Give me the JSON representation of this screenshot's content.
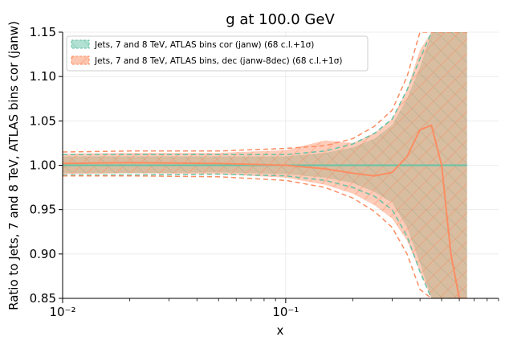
{
  "chart_data": {
    "type": "line",
    "title": "g at 100.0 GeV",
    "xlabel": "x",
    "ylabel": "Ratio to Jets, 7 and 8 TeV, ATLAS bins cor (janw)",
    "xscale": "log",
    "xlim": [
      0.01,
      0.9
    ],
    "ylim": [
      0.85,
      1.15
    ],
    "x_ticks": [
      {
        "value": 0.01,
        "label": "10⁻²"
      },
      {
        "value": 0.1,
        "label": "10⁻¹"
      }
    ],
    "y_ticks": [
      0.85,
      0.9,
      0.95,
      1.0,
      1.05,
      1.1,
      1.15
    ],
    "y_tick_labels": [
      "0.85",
      "0.90",
      "0.95",
      "1.00",
      "1.05",
      "1.10",
      "1.15"
    ],
    "legend_placement": "top-left",
    "grid": true,
    "series": [
      {
        "name": "Jets, 7 and 8 TeV, ATLAS bins cor (janw) (68 c.l.+1σ)",
        "color": "#66c2a5",
        "x": [
          0.01,
          0.02,
          0.05,
          0.1,
          0.15,
          0.2,
          0.25,
          0.3,
          0.35,
          0.4,
          0.45,
          0.5,
          0.55,
          0.6,
          0.65
        ],
        "central": [
          1.0,
          1.0,
          1.0,
          1.0,
          1.0,
          1.0,
          1.0,
          1.0,
          1.0,
          1.0,
          1.0,
          1.0,
          1.0,
          1.0,
          1.0
        ],
        "band_lo": [
          0.991,
          0.991,
          0.992,
          0.99,
          0.986,
          0.98,
          0.97,
          0.958,
          0.93,
          0.89,
          0.85,
          0.85,
          0.85,
          0.85,
          0.85
        ],
        "band_hi": [
          1.01,
          1.01,
          1.01,
          1.01,
          1.014,
          1.02,
          1.03,
          1.045,
          1.075,
          1.11,
          1.15,
          1.15,
          1.15,
          1.15,
          1.15
        ],
        "dashed_lo": [
          0.989,
          0.989,
          0.99,
          0.988,
          0.983,
          0.975,
          0.965,
          0.95,
          0.92,
          0.88,
          0.85,
          0.85,
          0.85,
          0.85,
          0.85
        ],
        "dashed_hi": [
          1.012,
          1.012,
          1.012,
          1.012,
          1.016,
          1.024,
          1.036,
          1.052,
          1.085,
          1.12,
          1.15,
          1.15,
          1.15,
          1.15,
          1.15
        ]
      },
      {
        "name": "Jets, 7 and 8 TeV, ATLAS bins, dec (janw-8dec) (68 c.l.+1σ)",
        "color": "#fc8d62",
        "x": [
          0.01,
          0.02,
          0.05,
          0.1,
          0.15,
          0.2,
          0.25,
          0.3,
          0.35,
          0.4,
          0.45,
          0.5,
          0.55,
          0.6,
          0.65
        ],
        "central": [
          1.002,
          1.003,
          1.002,
          1.0,
          0.996,
          0.991,
          0.988,
          0.992,
          1.01,
          1.04,
          1.045,
          1.0,
          0.9,
          0.85,
          0.85
        ],
        "band_lo": [
          0.99,
          0.991,
          0.99,
          0.986,
          0.978,
          0.968,
          0.955,
          0.94,
          0.915,
          0.88,
          0.85,
          0.85,
          0.85,
          0.85,
          0.85
        ],
        "band_hi": [
          1.013,
          1.014,
          1.014,
          1.017,
          1.028,
          1.025,
          1.036,
          1.052,
          1.085,
          1.13,
          1.15,
          1.15,
          1.15,
          1.15,
          1.15
        ],
        "dashed_lo": [
          0.988,
          0.988,
          0.987,
          0.983,
          0.975,
          0.963,
          0.948,
          0.93,
          0.9,
          0.86,
          0.85,
          0.85,
          0.85,
          0.85,
          0.85
        ],
        "dashed_hi": [
          1.015,
          1.016,
          1.016,
          1.019,
          1.022,
          1.03,
          1.044,
          1.062,
          1.1,
          1.15,
          1.15,
          1.15,
          1.15,
          1.15,
          1.15
        ]
      }
    ]
  }
}
